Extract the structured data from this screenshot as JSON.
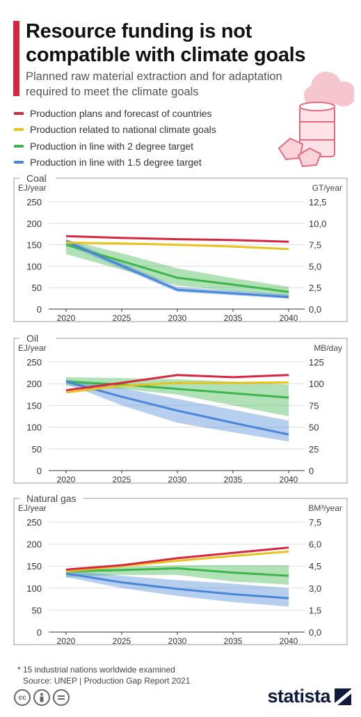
{
  "header": {
    "title": "Resource funding is not compatible with climate goals",
    "subtitle": "Planned raw material extraction and for adaptation required to meet the climate goals"
  },
  "colors": {
    "accent": "#d7263d",
    "production_plans": "#d7263d",
    "national_goals": "#e8c21d",
    "two_degree": "#3cb54a",
    "one_point_five": "#4a86d8"
  },
  "legend": [
    {
      "label": "Production plans and forecast of countries",
      "color": "#d7263d"
    },
    {
      "label": "Production related to national climate goals",
      "color": "#e8c21d"
    },
    {
      "label": "Production in line with 2 degree target",
      "color": "#3cb54a"
    },
    {
      "label": "Production in line with 1.5 degree target",
      "color": "#4a86d8"
    }
  ],
  "chart_data": [
    {
      "type": "line",
      "title": "Coal",
      "ylabel": "EJ/year",
      "y2label": "GT/year",
      "x": [
        2020,
        2025,
        2030,
        2035,
        2040
      ],
      "xticks": [
        "2020",
        "2025",
        "2030",
        "2035",
        "2040"
      ],
      "ylim": [
        0,
        250
      ],
      "yticks": [
        "0",
        "50",
        "100",
        "150",
        "200",
        "250"
      ],
      "y2ticks": [
        "0,0",
        "2,5",
        "5,0",
        "7,5",
        "10,0",
        "12,5"
      ],
      "series": [
        {
          "key": "production_plans",
          "values": [
            170,
            166,
            163,
            161,
            157
          ]
        },
        {
          "key": "national_goals",
          "values": [
            155,
            153,
            150,
            146,
            140
          ]
        },
        {
          "key": "two_degree",
          "values": [
            150,
            112,
            73,
            57,
            40
          ],
          "band_upper": [
            162,
            130,
            95,
            72,
            52
          ],
          "band_lower": [
            128,
            92,
            55,
            42,
            30
          ]
        },
        {
          "key": "one_point_five",
          "values": [
            158,
            101,
            45,
            37,
            28
          ],
          "band_upper": [
            164,
            108,
            52,
            43,
            34
          ],
          "band_lower": [
            150,
            95,
            40,
            32,
            24
          ]
        }
      ]
    },
    {
      "type": "line",
      "title": "Oil",
      "ylabel": "EJ/year",
      "y2label": "MB/day",
      "x": [
        2020,
        2025,
        2030,
        2035,
        2040
      ],
      "xticks": [
        "2020",
        "2025",
        "2030",
        "2035",
        "2040"
      ],
      "ylim": [
        0,
        250
      ],
      "yticks": [
        "0",
        "50",
        "100",
        "150",
        "200",
        "250"
      ],
      "y2ticks": [
        "0",
        "25",
        "50",
        "75",
        "100",
        "125"
      ],
      "series": [
        {
          "key": "production_plans",
          "values": [
            185,
            202,
            220,
            215,
            220
          ]
        },
        {
          "key": "national_goals",
          "values": [
            180,
            195,
            202,
            202,
            203
          ]
        },
        {
          "key": "two_degree",
          "values": [
            205,
            198,
            188,
            178,
            168
          ],
          "band_upper": [
            215,
            213,
            210,
            205,
            198
          ],
          "band_lower": [
            195,
            188,
            175,
            150,
            125
          ]
        },
        {
          "key": "one_point_five",
          "values": [
            205,
            170,
            138,
            110,
            83
          ],
          "band_upper": [
            210,
            190,
            165,
            140,
            115
          ],
          "band_lower": [
            200,
            150,
            110,
            88,
            67
          ]
        }
      ]
    },
    {
      "type": "line",
      "title": "Natural gas",
      "ylabel": "EJ/year",
      "y2label": "BM³/year",
      "x": [
        2020,
        2025,
        2030,
        2035,
        2040
      ],
      "xticks": [
        "2020",
        "2025",
        "2030",
        "2035",
        "2040"
      ],
      "ylim": [
        0,
        250
      ],
      "yticks": [
        "0",
        "50",
        "100",
        "150",
        "200",
        "250"
      ],
      "y2ticks": [
        "0,0",
        "1,5",
        "3,0",
        "4,5",
        "6,0",
        "7,5"
      ],
      "series": [
        {
          "key": "production_plans",
          "values": [
            142,
            152,
            168,
            180,
            192
          ]
        },
        {
          "key": "national_goals",
          "values": [
            138,
            150,
            162,
            173,
            183
          ]
        },
        {
          "key": "two_degree",
          "values": [
            138,
            141,
            145,
            135,
            128
          ],
          "band_upper": [
            142,
            148,
            152,
            152,
            152
          ],
          "band_lower": [
            125,
            130,
            130,
            115,
            108
          ]
        },
        {
          "key": "one_point_five",
          "values": [
            133,
            113,
            98,
            86,
            77
          ],
          "band_upper": [
            140,
            128,
            118,
            110,
            100
          ],
          "band_lower": [
            125,
            100,
            82,
            68,
            58
          ]
        }
      ]
    }
  ],
  "footer": {
    "footnote": "* 15 industrial nations worldwide examined",
    "source": "Source: UNEP | Production Gap Report 2021",
    "cc_icons": [
      "cc",
      "by",
      "nd"
    ],
    "brand": "statista"
  }
}
